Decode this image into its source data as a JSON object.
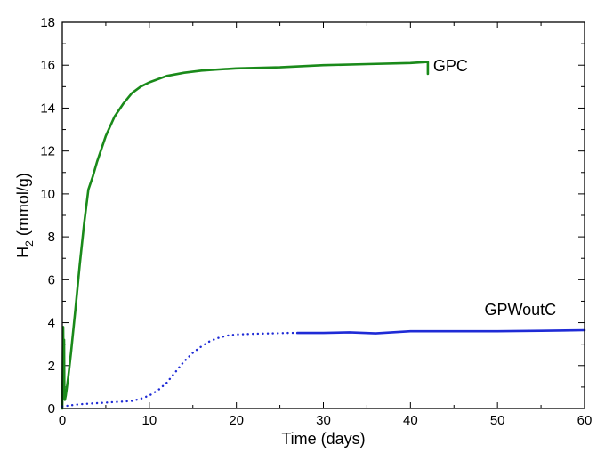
{
  "chart_data": {
    "type": "line",
    "xlabel": "Time (days)",
    "ylabel_main": "H",
    "ylabel_sub": "2",
    "ylabel_rest": " (mmol/g)",
    "xlim": [
      0,
      60
    ],
    "ylim": [
      0,
      18
    ],
    "xticks": [
      "0",
      "10",
      "20",
      "30",
      "40",
      "50",
      "60"
    ],
    "yticks": [
      "0",
      "2",
      "4",
      "6",
      "8",
      "10",
      "12",
      "14",
      "16",
      "18"
    ],
    "grid": false,
    "series": [
      {
        "name": "GPC",
        "color": "#1a8a1a",
        "style": "solid",
        "x": [
          0,
          0.1,
          0.15,
          0.2,
          0.25,
          0.3,
          0.4,
          0.5,
          0.7,
          1.0,
          1.5,
          2.0,
          2.5,
          3.0,
          3.5,
          4.0,
          5.0,
          6.0,
          7.0,
          8.0,
          9.0,
          10.0,
          12.0,
          14.0,
          16.0,
          18.0,
          20.0,
          25.0,
          30.0,
          35.0,
          40.0,
          42.0,
          42.0
        ],
        "y": [
          0,
          3.8,
          1.5,
          3.2,
          0.5,
          0.4,
          0.6,
          0.9,
          1.5,
          2.6,
          4.6,
          6.7,
          8.6,
          10.2,
          10.8,
          11.5,
          12.7,
          13.6,
          14.2,
          14.7,
          15.0,
          15.2,
          15.5,
          15.65,
          15.75,
          15.8,
          15.85,
          15.9,
          16.0,
          16.05,
          16.1,
          16.15,
          15.6
        ]
      },
      {
        "name": "GPWoutC",
        "color": "#1f2bd6",
        "style": "dotted",
        "x": [
          0,
          1,
          2,
          4,
          6,
          8,
          9,
          10,
          11,
          12,
          13,
          14,
          15,
          16,
          17,
          18,
          19,
          20,
          22,
          24,
          26,
          27
        ],
        "y": [
          0.1,
          0.15,
          0.2,
          0.25,
          0.3,
          0.35,
          0.45,
          0.6,
          0.85,
          1.2,
          1.7,
          2.2,
          2.6,
          2.9,
          3.15,
          3.3,
          3.4,
          3.45,
          3.48,
          3.5,
          3.52,
          3.52
        ]
      },
      {
        "name": "GPWoutC",
        "color": "#1f2bd6",
        "style": "solid",
        "x": [
          27,
          30,
          33,
          36,
          40,
          45,
          50,
          55,
          60
        ],
        "y": [
          3.52,
          3.52,
          3.55,
          3.5,
          3.6,
          3.6,
          3.6,
          3.62,
          3.65
        ]
      }
    ],
    "annotations": [
      {
        "text": "GPC",
        "series": 0
      },
      {
        "text": "GPWoutC",
        "series": 1
      }
    ]
  }
}
